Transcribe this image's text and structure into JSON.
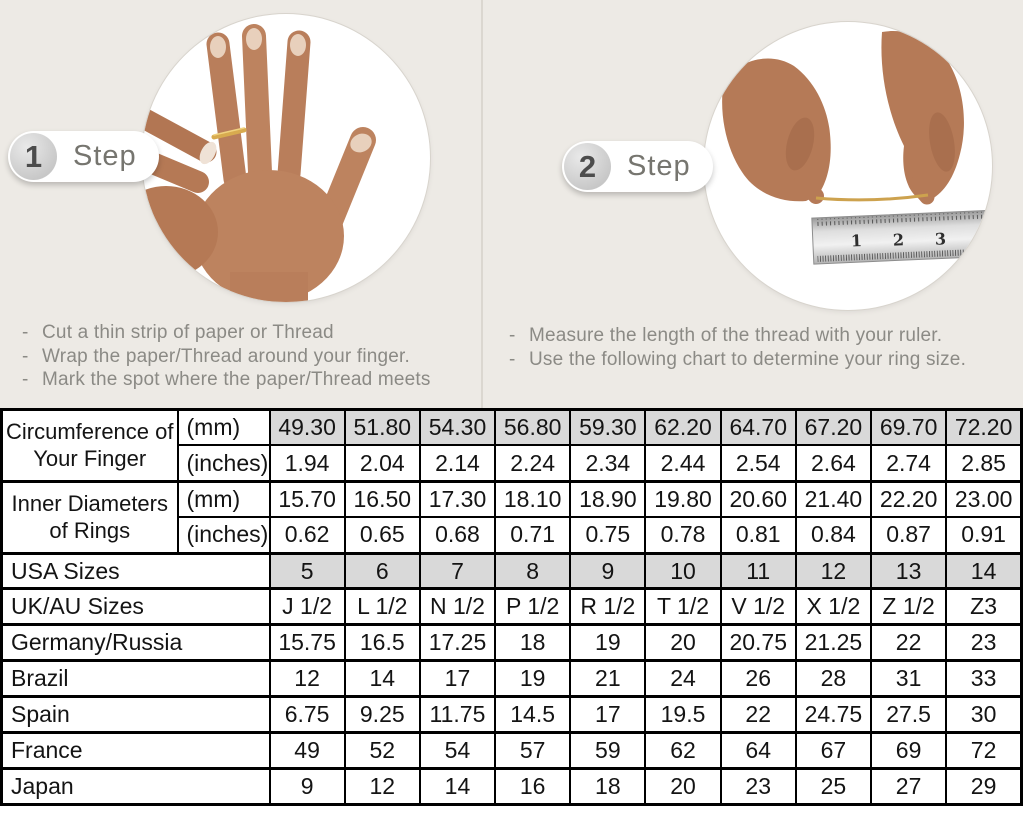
{
  "colors": {
    "page_background": "#edeae5",
    "divider": "#dbd7d0",
    "table_shaded_cell": "#d9d9d9",
    "table_border": "#000000",
    "gold_thread": "#cda24e",
    "skin_tone": "#b97e5b",
    "step_text": "#76756f",
    "instruction_text": "#8b8a85"
  },
  "steps": [
    {
      "number": "1",
      "label": "Step",
      "image": "hand-with-thread-wrapped-around-ring-finger",
      "instructions": [
        "Cut a thin strip of paper or Thread",
        "Wrap the paper/Thread around your finger.",
        "Mark the spot where the paper/Thread meets"
      ]
    },
    {
      "number": "2",
      "label": "Step",
      "image": "two-hands-measuring-thread-against-ruler",
      "ruler_numbers": [
        "1",
        "2",
        "3"
      ],
      "instructions": [
        "Measure the length of the thread with your ruler.",
        "Use the following chart to determine your ring size."
      ]
    }
  ],
  "size_table": {
    "groups": [
      {
        "label": "Circumference of Your Finger",
        "rows": [
          {
            "unit": "(mm)",
            "shaded": true,
            "values": [
              "49.30",
              "51.80",
              "54.30",
              "56.80",
              "59.30",
              "62.20",
              "64.70",
              "67.20",
              "69.70",
              "72.20"
            ]
          },
          {
            "unit": "(inches)",
            "shaded": false,
            "values": [
              "1.94",
              "2.04",
              "2.14",
              "2.24",
              "2.34",
              "2.44",
              "2.54",
              "2.64",
              "2.74",
              "2.85"
            ]
          }
        ]
      },
      {
        "label": "Inner Diameters of Rings",
        "rows": [
          {
            "unit": "(mm)",
            "shaded": false,
            "values": [
              "15.70",
              "16.50",
              "17.30",
              "18.10",
              "18.90",
              "19.80",
              "20.60",
              "21.40",
              "22.20",
              "23.00"
            ]
          },
          {
            "unit": "(inches)",
            "shaded": false,
            "values": [
              "0.62",
              "0.65",
              "0.68",
              "0.71",
              "0.75",
              "0.78",
              "0.81",
              "0.84",
              "0.87",
              "0.91"
            ]
          }
        ]
      }
    ],
    "country_rows": [
      {
        "label": "USA Sizes",
        "shaded": true,
        "values": [
          "5",
          "6",
          "7",
          "8",
          "9",
          "10",
          "11",
          "12",
          "13",
          "14"
        ]
      },
      {
        "label": "UK/AU Sizes",
        "shaded": false,
        "values": [
          "J 1/2",
          "L 1/2",
          "N 1/2",
          "P 1/2",
          "R 1/2",
          "T 1/2",
          "V 1/2",
          "X 1/2",
          "Z 1/2",
          "Z3"
        ]
      },
      {
        "label": "Germany/Russia",
        "shaded": false,
        "values": [
          "15.75",
          "16.5",
          "17.25",
          "18",
          "19",
          "20",
          "20.75",
          "21.25",
          "22",
          "23"
        ]
      },
      {
        "label": "Brazil",
        "shaded": false,
        "values": [
          "12",
          "14",
          "17",
          "19",
          "21",
          "24",
          "26",
          "28",
          "31",
          "33"
        ]
      },
      {
        "label": "Spain",
        "shaded": false,
        "values": [
          "6.75",
          "9.25",
          "11.75",
          "14.5",
          "17",
          "19.5",
          "22",
          "24.75",
          "27.5",
          "30"
        ]
      },
      {
        "label": "France",
        "shaded": false,
        "values": [
          "49",
          "52",
          "54",
          "57",
          "59",
          "62",
          "64",
          "67",
          "69",
          "72"
        ]
      },
      {
        "label": "Japan",
        "shaded": false,
        "values": [
          "9",
          "12",
          "14",
          "16",
          "18",
          "20",
          "23",
          "25",
          "27",
          "29"
        ]
      }
    ]
  }
}
